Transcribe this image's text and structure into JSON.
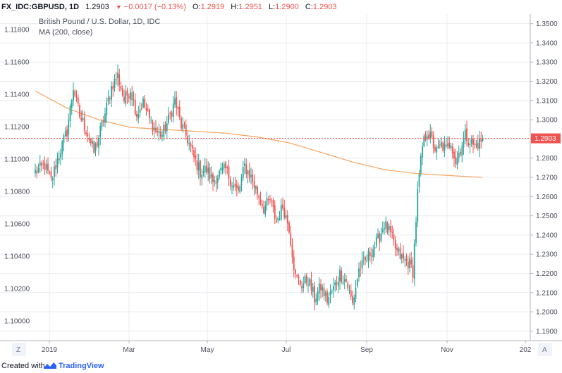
{
  "header": {
    "symbol": "FX_IDC:GBPUSD, 1D",
    "last": "1.2903",
    "change": "−0.0017 (−0.13%)",
    "open_label": "O:",
    "open": "1.2919",
    "high_label": "H:",
    "high": "1.2951",
    "low_label": "L:",
    "low": "1.2900",
    "close_label": "C:",
    "close": "1.2903"
  },
  "legend": {
    "title": "British Pound / U.S. Dollar, 1D, IDC",
    "indicator": "MA (200, close)"
  },
  "footer": {
    "created": "Created with",
    "brand": "TradingView"
  },
  "colors": {
    "up": "#26a69a",
    "down": "#ef5350",
    "ma": "#f7a35c",
    "grid": "#e8ecf1",
    "price_line": "#ef5350"
  },
  "buttons": {
    "zoom": "Z",
    "auto": "A"
  },
  "chart_data": {
    "type": "candlestick",
    "title": "British Pound / U.S. Dollar, 1D, IDC",
    "price_axis": {
      "range": [
        1.185,
        1.355
      ],
      "ticks": [
        "1.3500",
        "1.3400",
        "1.3300",
        "1.3200",
        "1.3100",
        "1.3000",
        "1.2900",
        "1.2800",
        "1.2700",
        "1.2600",
        "1.2500",
        "1.2400",
        "1.2300",
        "1.2200",
        "1.2100",
        "1.2000",
        "1.1900"
      ]
    },
    "left_axis": {
      "ticks": [
        "1.11800",
        "1.11600",
        "1.11400",
        "1.11200",
        "1.11000",
        "1.10800",
        "1.10600",
        "1.10400",
        "1.10200",
        "1.10000"
      ]
    },
    "x_ticks": [
      "2019",
      "Mar",
      "May",
      "Jul",
      "Sep",
      "Nov",
      "202"
    ],
    "last_price": "1.2903",
    "close_anchors": [
      [
        0,
        1.273
      ],
      [
        6,
        1.276
      ],
      [
        10,
        1.268
      ],
      [
        15,
        1.282
      ],
      [
        20,
        1.294
      ],
      [
        24,
        1.317
      ],
      [
        28,
        1.302
      ],
      [
        32,
        1.295
      ],
      [
        37,
        1.283
      ],
      [
        40,
        1.291
      ],
      [
        44,
        1.303
      ],
      [
        48,
        1.317
      ],
      [
        52,
        1.323
      ],
      [
        56,
        1.31
      ],
      [
        60,
        1.316
      ],
      [
        64,
        1.303
      ],
      [
        68,
        1.309
      ],
      [
        72,
        1.3
      ],
      [
        76,
        1.294
      ],
      [
        80,
        1.292
      ],
      [
        84,
        1.3
      ],
      [
        88,
        1.31
      ],
      [
        92,
        1.297
      ],
      [
        96,
        1.29
      ],
      [
        100,
        1.28
      ],
      [
        104,
        1.273
      ],
      [
        108,
        1.274
      ],
      [
        112,
        1.268
      ],
      [
        116,
        1.272
      ],
      [
        120,
        1.274
      ],
      [
        124,
        1.267
      ],
      [
        128,
        1.262
      ],
      [
        132,
        1.276
      ],
      [
        136,
        1.27
      ],
      [
        140,
        1.262
      ],
      [
        144,
        1.254
      ],
      [
        148,
        1.258
      ],
      [
        152,
        1.247
      ],
      [
        156,
        1.255
      ],
      [
        160,
        1.244
      ],
      [
        164,
        1.218
      ],
      [
        168,
        1.214
      ],
      [
        172,
        1.217
      ],
      [
        176,
        1.207
      ],
      [
        180,
        1.213
      ],
      [
        184,
        1.206
      ],
      [
        188,
        1.212
      ],
      [
        192,
        1.22
      ],
      [
        196,
        1.216
      ],
      [
        200,
        1.204
      ],
      [
        204,
        1.222
      ],
      [
        208,
        1.226
      ],
      [
        212,
        1.232
      ],
      [
        216,
        1.237
      ],
      [
        220,
        1.246
      ],
      [
        224,
        1.24
      ],
      [
        228,
        1.231
      ],
      [
        232,
        1.227
      ],
      [
        236,
        1.225
      ],
      [
        238,
        1.221
      ],
      [
        241,
        1.262
      ],
      [
        244,
        1.286
      ],
      [
        247,
        1.294
      ],
      [
        250,
        1.289
      ],
      [
        253,
        1.283
      ],
      [
        256,
        1.287
      ],
      [
        259,
        1.284
      ],
      [
        262,
        1.289
      ],
      [
        265,
        1.278
      ],
      [
        268,
        1.285
      ],
      [
        271,
        1.292
      ],
      [
        274,
        1.289
      ],
      [
        277,
        1.286
      ],
      [
        280,
        1.288
      ],
      [
        282,
        1.2903
      ]
    ],
    "ma_200": [
      [
        0,
        1.315
      ],
      [
        20,
        1.306
      ],
      [
        40,
        1.3
      ],
      [
        60,
        1.296
      ],
      [
        80,
        1.295
      ],
      [
        100,
        1.294
      ],
      [
        120,
        1.293
      ],
      [
        140,
        1.291
      ],
      [
        160,
        1.288
      ],
      [
        180,
        1.283
      ],
      [
        200,
        1.278
      ],
      [
        220,
        1.274
      ],
      [
        240,
        1.272
      ],
      [
        260,
        1.271
      ],
      [
        282,
        1.27
      ]
    ]
  }
}
